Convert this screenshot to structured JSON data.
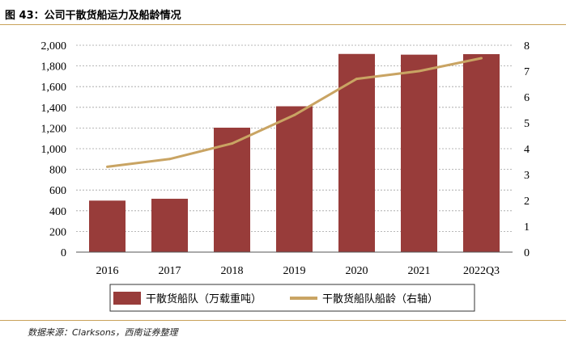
{
  "figure_title": "图 43：公司干散货船运力及船龄情况",
  "source_note": "数据来源：Clarksons，西南证券整理",
  "colors": {
    "bar": "#983c3a",
    "line": "#c9a463",
    "rule": "#c9a25a",
    "grid": "#a0a0a0"
  },
  "chart_data": {
    "type": "bar",
    "title": "",
    "categories": [
      "2016",
      "2017",
      "2018",
      "2019",
      "2020",
      "2021",
      "2022Q3"
    ],
    "ylim": [
      0,
      2000
    ],
    "y_ticks": [
      "0",
      "200",
      "400",
      "600",
      "800",
      "1,000",
      "1,200",
      "1,400",
      "1,600",
      "1,800",
      "2,000"
    ],
    "y2lim": [
      0,
      8
    ],
    "y2_ticks": [
      "0",
      "1",
      "2",
      "3",
      "4",
      "5",
      "6",
      "7",
      "8"
    ],
    "series": [
      {
        "name": "干散货船队（万载重吨）",
        "type": "bar",
        "axis": "left",
        "values": [
          498,
          516,
          1203,
          1410,
          1916,
          1909,
          1914
        ]
      },
      {
        "name": "干散货船队船龄（右轴）",
        "type": "line",
        "axis": "right",
        "values": [
          3.3,
          3.6,
          4.2,
          5.3,
          6.7,
          7.0,
          7.5
        ]
      }
    ],
    "legend_position": "bottom"
  }
}
